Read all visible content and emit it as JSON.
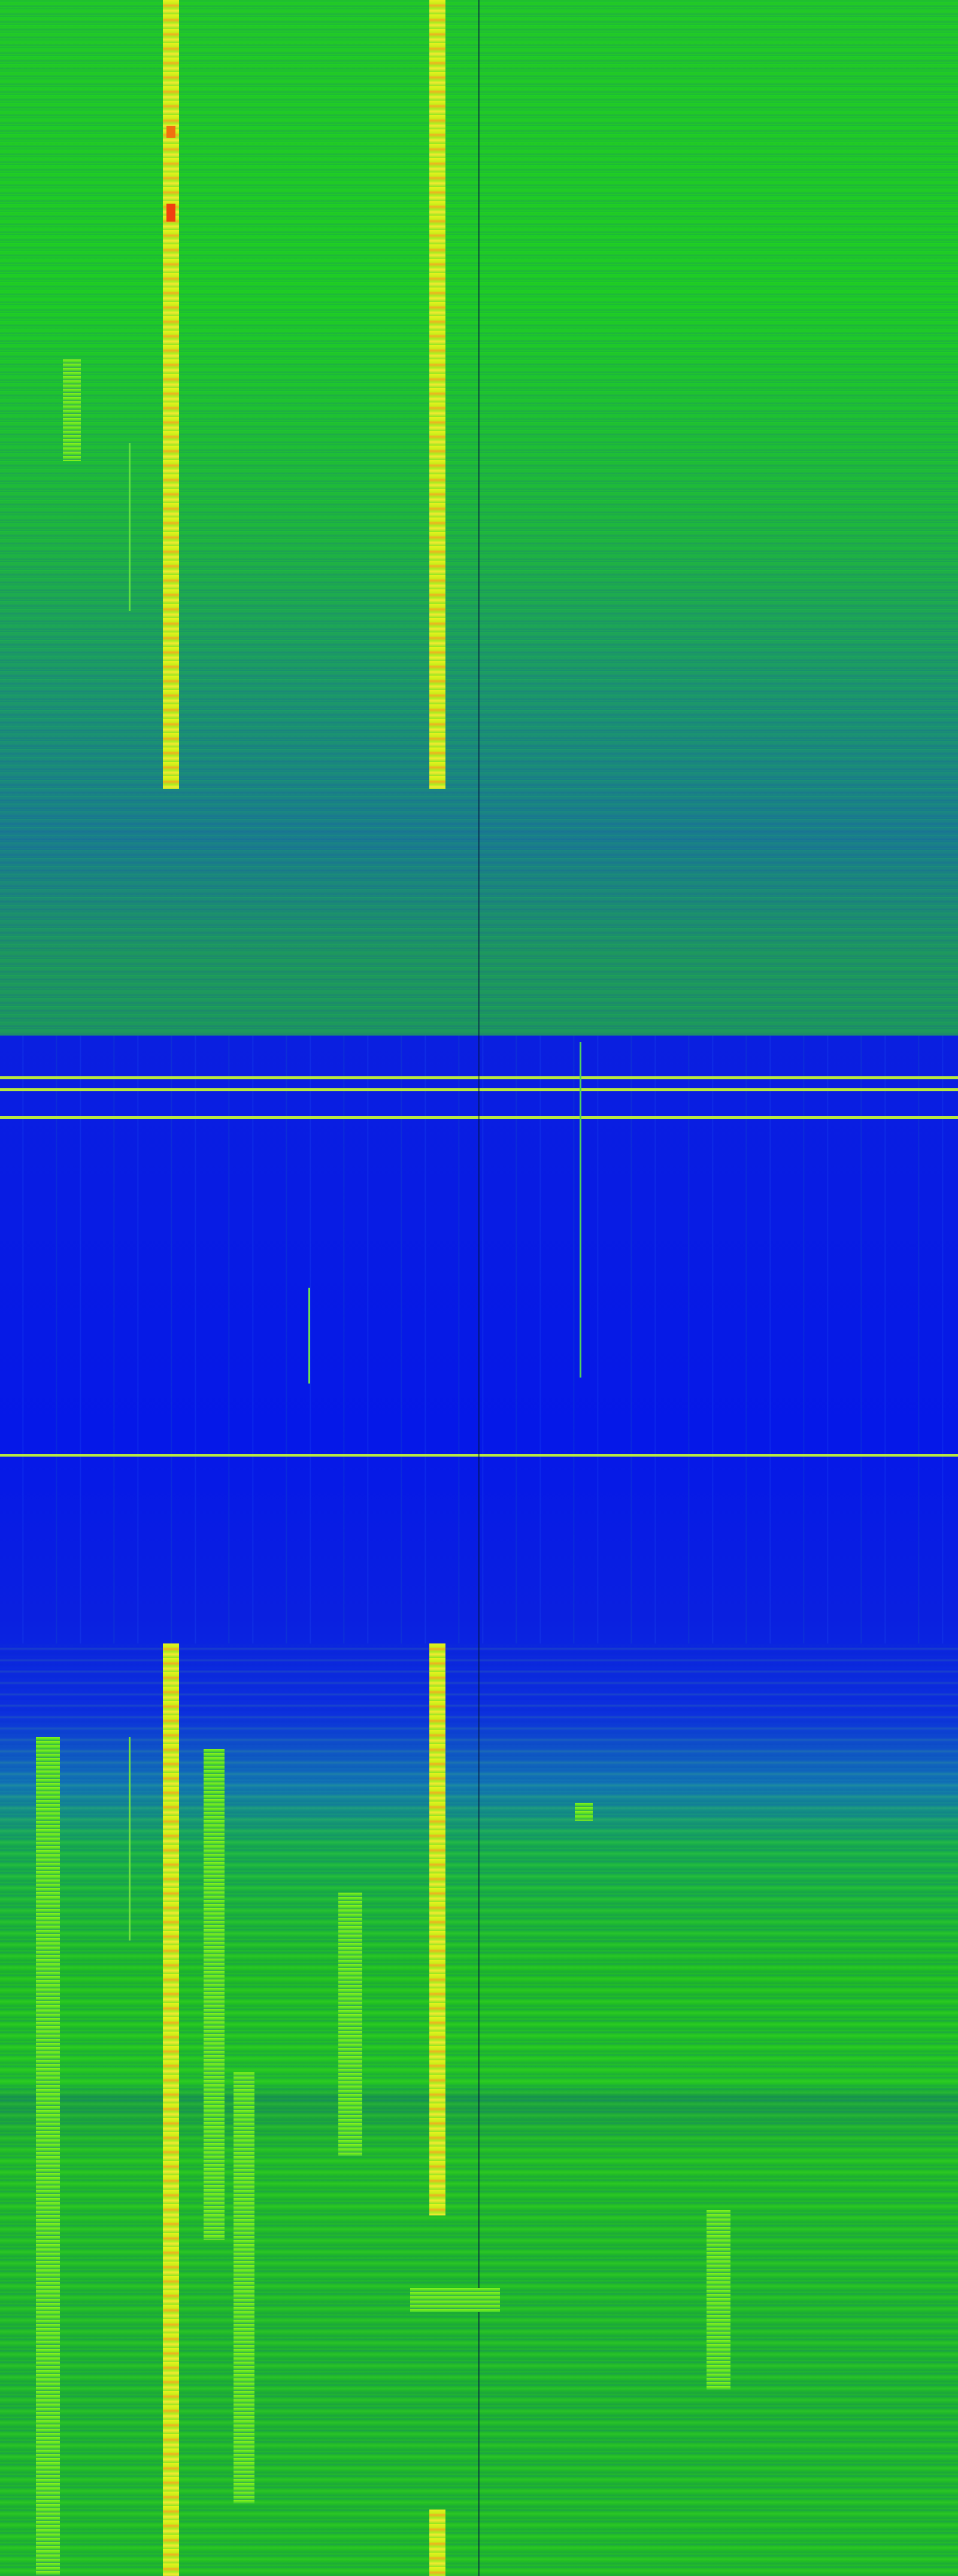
{
  "colors": {
    "high": "#f03010",
    "mid_high": "#f0f020",
    "mid": "#22cc22",
    "low": "#0518e8"
  }
}
